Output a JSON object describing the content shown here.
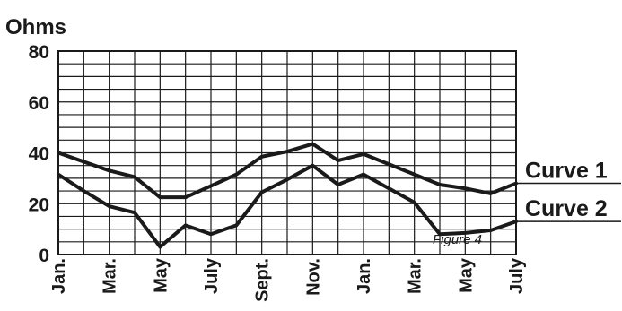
{
  "chart_data": {
    "type": "line",
    "title": "",
    "ylabel": "Ohms",
    "xlabel": "",
    "ylim": [
      0,
      80
    ],
    "yticks": [
      0,
      20,
      40,
      60,
      80
    ],
    "grid": true,
    "tick_labels": [
      "Jan.",
      "Mar.",
      "May",
      "July",
      "Sept.",
      "Nov.",
      "Jan.",
      "Mar.",
      "May",
      "July"
    ],
    "x_months": [
      0,
      1,
      2,
      3,
      4,
      5,
      6,
      7,
      8,
      9,
      10,
      11,
      12,
      13,
      14,
      15,
      16,
      17,
      18
    ],
    "series": [
      {
        "name": "Curve 1",
        "values": [
          40,
          36.5,
          33,
          30.5,
          22.5,
          22.5,
          27,
          31.5,
          38.5,
          40.5,
          43.5,
          37,
          39.5,
          35.5,
          31.5,
          27.5,
          26,
          24,
          28
        ]
      },
      {
        "name": "Curve 2",
        "values": [
          31.5,
          25,
          19,
          16.5,
          3,
          11.5,
          8,
          11.5,
          24.5,
          29.5,
          35,
          27.5,
          31.5,
          26,
          20.5,
          8,
          8.5,
          9.5,
          13
        ]
      }
    ],
    "annotations": [
      "Figure 4"
    ],
    "colors": {
      "line": "#1a1a1a",
      "grid": "#1a1a1a",
      "background": "#ffffff"
    }
  }
}
